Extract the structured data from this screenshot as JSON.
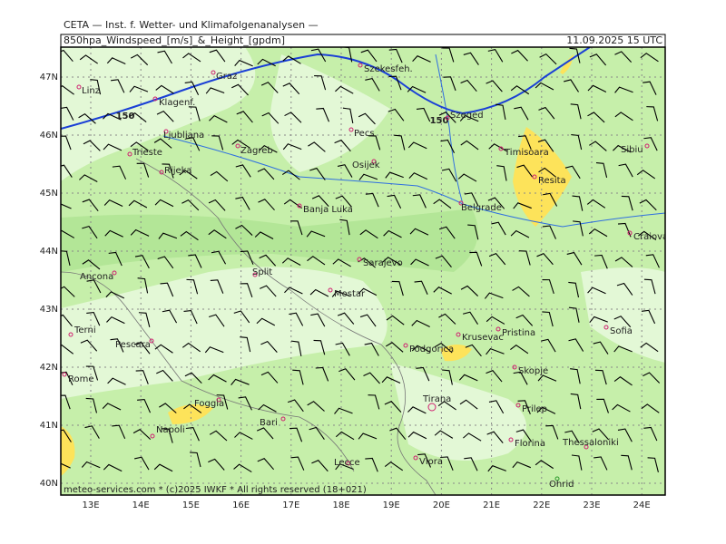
{
  "header": {
    "institute": "CETA — Inst. f. Wetter- und Klimafolgenanalysen —",
    "product": "850hpa_Windspeed_[m/s]_&_Height_[gpdm]",
    "valid": "11.09.2025 15 UTC"
  },
  "footer": "meteo-services.com * (c)2025 IWKF * All rights reserved (18+021)",
  "map": {
    "lon_labels": [
      "13E",
      "14E",
      "15E",
      "16E",
      "17E",
      "18E",
      "19E",
      "20E",
      "21E",
      "22E",
      "23E",
      "24E"
    ],
    "lat_labels": [
      "47N",
      "46N",
      "45N",
      "44N",
      "43N",
      "42N",
      "41N",
      "40N"
    ],
    "contour_labels": [
      "150",
      "150"
    ],
    "cities": [
      "Linz",
      "Graz",
      "Szekesfeh.",
      "Klagenf.",
      "Ljubljana",
      "Zagreb",
      "Pecs",
      "Szeged",
      "Osijek",
      "Timisoara",
      "Sibiu",
      "Trieste",
      "Rijeka",
      "Resita",
      "Banja Luka",
      "Belgrade",
      "Craiova",
      "Ancona",
      "Split",
      "Sarajevo",
      "Mostar",
      "Terni",
      "Pescara",
      "Pristina",
      "Sofia",
      "Krusevac",
      "Podgorica",
      "Rome",
      "Skopje",
      "Foggia",
      "Tirana",
      "Prilep",
      "Napoli",
      "Bari",
      "Florina",
      "Thessaloniki",
      "Lecce",
      "Vlora",
      "Ohrid"
    ]
  }
}
